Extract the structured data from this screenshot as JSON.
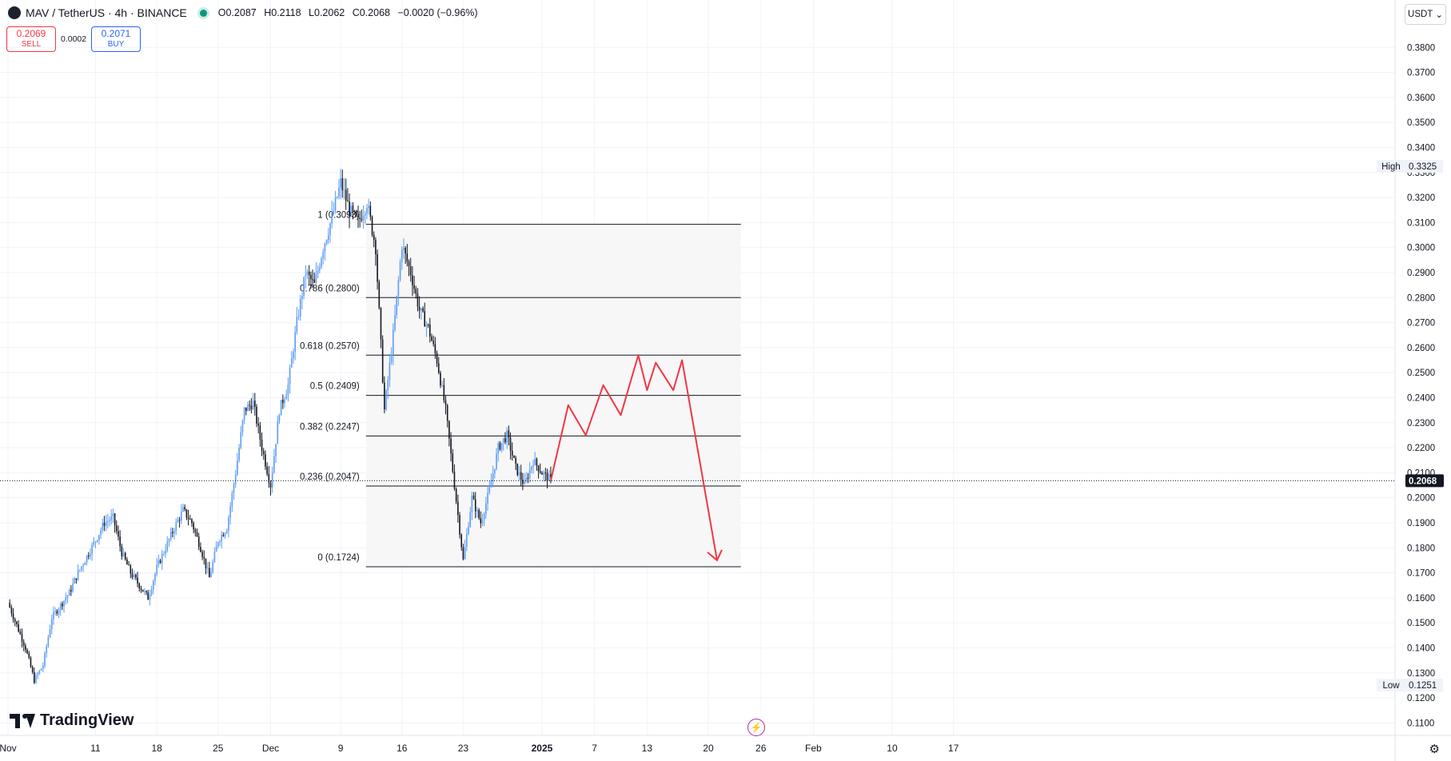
{
  "header": {
    "symbol": "MAV / TetherUS · 4h · BINANCE",
    "open_key": "O",
    "open": "0.2087",
    "high_key": "H",
    "high": "0.2118",
    "low_key": "L",
    "low": "0.2062",
    "close_key": "C",
    "close": "0.2068",
    "change": "−0.0020 (−0.96%)"
  },
  "trade": {
    "sell_price": "0.2069",
    "sell_label": "SELL",
    "spread": "0.0002",
    "buy_price": "0.2071",
    "buy_label": "BUY"
  },
  "currency": {
    "label": "USDT",
    "chevron_icon": "chevron-down-icon"
  },
  "branding": {
    "logo_text": "TradingView"
  },
  "colors": {
    "up": "#5b9cf6",
    "down": "#131722",
    "projection": "#f23645",
    "fib_line": "#131722",
    "fib_fill": "#f7f7f7",
    "last_price_bg": "#131722"
  },
  "chart_data": {
    "type": "candlestick",
    "ylim": [
      0.105,
      0.39
    ],
    "y_ticks": [
      "0.3800",
      "0.3700",
      "0.3600",
      "0.3500",
      "0.3400",
      "0.3300",
      "0.3200",
      "0.3100",
      "0.3000",
      "0.2900",
      "0.2800",
      "0.2700",
      "0.2600",
      "0.2500",
      "0.2400",
      "0.2300",
      "0.2200",
      "0.2100",
      "0.2000",
      "0.1900",
      "0.1800",
      "0.1700",
      "0.1600",
      "0.1500",
      "0.1400",
      "0.1300",
      "0.1200",
      "0.1100"
    ],
    "x_ticks": [
      {
        "label": "Nov",
        "date": "2024-11-01"
      },
      {
        "label": "11",
        "date": "2024-11-11"
      },
      {
        "label": "18",
        "date": "2024-11-18"
      },
      {
        "label": "25",
        "date": "2024-11-25"
      },
      {
        "label": "Dec",
        "date": "2024-12-01"
      },
      {
        "label": "9",
        "date": "2024-12-09"
      },
      {
        "label": "16",
        "date": "2024-12-16"
      },
      {
        "label": "23",
        "date": "2024-12-23"
      },
      {
        "label": "2025",
        "date": "2025-01-01"
      },
      {
        "label": "7",
        "date": "2025-01-07"
      },
      {
        "label": "13",
        "date": "2025-01-13"
      },
      {
        "label": "20",
        "date": "2025-01-20"
      },
      {
        "label": "26",
        "date": "2025-01-26"
      },
      {
        "label": "Feb",
        "date": "2025-02-01"
      },
      {
        "label": "10",
        "date": "2025-02-10"
      },
      {
        "label": "17",
        "date": "2025-02-17"
      }
    ],
    "price_path": [
      [
        "2024-11-01",
        0.158
      ],
      [
        "2024-11-02",
        0.149
      ],
      [
        "2024-11-03",
        0.14
      ],
      [
        "2024-11-04",
        0.127
      ],
      [
        "2024-11-05",
        0.133
      ],
      [
        "2024-11-06",
        0.152
      ],
      [
        "2024-11-08",
        0.162
      ],
      [
        "2024-11-09",
        0.17
      ],
      [
        "2024-11-11",
        0.183
      ],
      [
        "2024-11-12",
        0.19
      ],
      [
        "2024-11-13",
        0.192
      ],
      [
        "2024-11-14",
        0.178
      ],
      [
        "2024-11-15",
        0.17
      ],
      [
        "2024-11-16",
        0.165
      ],
      [
        "2024-11-17",
        0.16
      ],
      [
        "2024-11-18",
        0.172
      ],
      [
        "2024-11-19",
        0.18
      ],
      [
        "2024-11-20",
        0.188
      ],
      [
        "2024-11-21",
        0.195
      ],
      [
        "2024-11-22",
        0.19
      ],
      [
        "2024-11-23",
        0.18
      ],
      [
        "2024-11-24",
        0.168
      ],
      [
        "2024-11-25",
        0.183
      ],
      [
        "2024-11-26",
        0.188
      ],
      [
        "2024-11-27",
        0.21
      ],
      [
        "2024-11-28",
        0.235
      ],
      [
        "2024-11-29",
        0.238
      ],
      [
        "2024-11-30",
        0.22
      ],
      [
        "2024-12-01",
        0.205
      ],
      [
        "2024-12-02",
        0.235
      ],
      [
        "2024-12-03",
        0.245
      ],
      [
        "2024-12-04",
        0.27
      ],
      [
        "2024-12-05",
        0.29
      ],
      [
        "2024-12-06",
        0.285
      ],
      [
        "2024-12-07",
        0.3
      ],
      [
        "2024-12-08",
        0.312
      ],
      [
        "2024-12-09",
        0.326
      ],
      [
        "2024-12-10",
        0.315
      ],
      [
        "2024-12-11",
        0.31
      ],
      [
        "2024-12-12",
        0.318
      ],
      [
        "2024-12-13",
        0.3
      ],
      [
        "2024-12-14",
        0.235
      ],
      [
        "2024-12-15",
        0.265
      ],
      [
        "2024-12-16",
        0.301
      ],
      [
        "2024-12-17",
        0.29
      ],
      [
        "2024-12-18",
        0.275
      ],
      [
        "2024-12-19",
        0.268
      ],
      [
        "2024-12-20",
        0.255
      ],
      [
        "2024-12-21",
        0.235
      ],
      [
        "2024-12-22",
        0.205
      ],
      [
        "2024-12-23",
        0.175
      ],
      [
        "2024-12-24",
        0.2
      ],
      [
        "2024-12-25",
        0.19
      ],
      [
        "2024-12-26",
        0.203
      ],
      [
        "2024-12-27",
        0.22
      ],
      [
        "2024-12-28",
        0.225
      ],
      [
        "2024-12-29",
        0.212
      ],
      [
        "2024-12-30",
        0.205
      ],
      [
        "2024-12-31",
        0.215
      ],
      [
        "2025-01-01",
        0.21
      ],
      [
        "2025-01-02",
        0.207
      ]
    ],
    "fib_levels": [
      {
        "ratio": "1",
        "price": 0.3093,
        "label": "1 (0.3093)"
      },
      {
        "ratio": "0.786",
        "price": 0.28,
        "label": "0.786 (0.2800)"
      },
      {
        "ratio": "0.618",
        "price": 0.257,
        "label": "0.618 (0.2570)"
      },
      {
        "ratio": "0.5",
        "price": 0.2409,
        "label": "0.5 (0.2409)"
      },
      {
        "ratio": "0.382",
        "price": 0.2247,
        "label": "0.382 (0.2247)"
      },
      {
        "ratio": "0.236",
        "price": 0.2047,
        "label": "0.236 (0.2047)"
      },
      {
        "ratio": "0",
        "price": 0.1724,
        "label": "0 (0.1724)"
      }
    ],
    "fib_range": {
      "start": "2024-12-16",
      "end": "2025-01-26"
    },
    "projection": [
      [
        "2025-01-02",
        0.2068
      ],
      [
        "2025-01-04",
        0.237
      ],
      [
        "2025-01-06",
        0.225
      ],
      [
        "2025-01-08",
        0.245
      ],
      [
        "2025-01-10",
        0.233
      ],
      [
        "2025-01-12",
        0.257
      ],
      [
        "2025-01-13",
        0.243
      ],
      [
        "2025-01-14",
        0.254
      ],
      [
        "2025-01-16",
        0.243
      ],
      [
        "2025-01-17",
        0.255
      ],
      [
        "2025-01-21",
        0.175
      ]
    ],
    "projection_arrow_end": [
      "2025-01-21",
      0.175
    ],
    "markers": [
      {
        "label": "High",
        "value": "0.3325",
        "price": 0.3325
      },
      {
        "label": "Low",
        "value": "0.1251",
        "price": 0.1251
      }
    ],
    "last_price": {
      "value": "0.2068",
      "price": 0.2068
    }
  }
}
